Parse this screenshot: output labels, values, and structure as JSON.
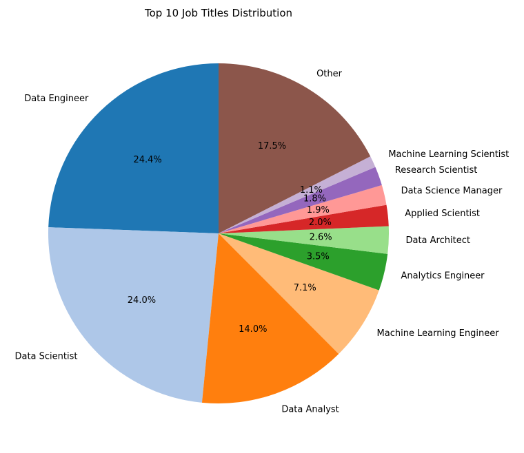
{
  "chart_data": {
    "type": "pie",
    "title": "Top 10 Job Titles Distribution",
    "start_angle_deg": 90,
    "direction": "counterclockwise",
    "slices": [
      {
        "label": "Data Engineer",
        "value": 24.4,
        "pct_label": "24.4%",
        "color": "#1f77b4"
      },
      {
        "label": "Data Scientist",
        "value": 24.0,
        "pct_label": "24.0%",
        "color": "#aec7e8"
      },
      {
        "label": "Data Analyst",
        "value": 14.0,
        "pct_label": "14.0%",
        "color": "#ff7f0e"
      },
      {
        "label": "Machine Learning Engineer",
        "value": 7.1,
        "pct_label": "7.1%",
        "color": "#ffbb78"
      },
      {
        "label": "Analytics Engineer",
        "value": 3.5,
        "pct_label": "3.5%",
        "color": "#2ca02c"
      },
      {
        "label": "Data Architect",
        "value": 2.6,
        "pct_label": "2.6%",
        "color": "#98df8a"
      },
      {
        "label": "Applied Scientist",
        "value": 2.0,
        "pct_label": "2.0%",
        "color": "#d62728"
      },
      {
        "label": "Data Science Manager",
        "value": 1.9,
        "pct_label": "1.9%",
        "color": "#ff9896"
      },
      {
        "label": "Research Scientist",
        "value": 1.8,
        "pct_label": "1.8%",
        "color": "#9467bd"
      },
      {
        "label": "Machine Learning Scientist",
        "value": 1.1,
        "pct_label": "1.1%",
        "color": "#c5b0d5"
      },
      {
        "label": "Other",
        "value": 17.5,
        "pct_label": "17.5%",
        "color": "#8c564b"
      }
    ]
  }
}
